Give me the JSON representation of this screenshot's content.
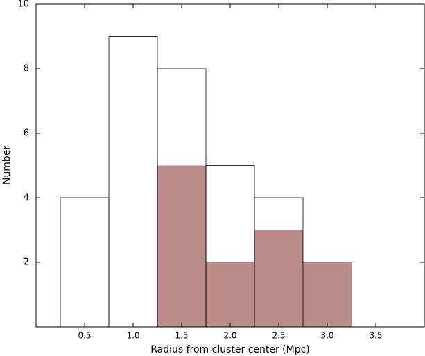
{
  "chart_data": {
    "type": "histogram",
    "xlabel": "Radius from cluster center (Mpc)",
    "ylabel": "Number",
    "bins": [
      0.25,
      0.75,
      1.25,
      1.75,
      2.25,
      2.75,
      3.25,
      3.75
    ],
    "series": [
      {
        "color": "#b98c8a",
        "filled": true,
        "values": [
          0,
          0,
          5,
          2,
          3,
          2,
          0
        ]
      },
      {
        "color": "#000000",
        "filled": false,
        "values": [
          4,
          9,
          8,
          5,
          4,
          0,
          0
        ]
      }
    ],
    "xlim": [
      0,
      4
    ],
    "ylim": [
      0,
      10
    ],
    "xticks": [
      0.5,
      {
        "value": 1,
        "label": "1.0"
      },
      1.5,
      {
        "value": 2,
        "label": "2.0"
      },
      2.5,
      {
        "value": 3,
        "label": "3.0"
      },
      3.5
    ],
    "yticks": [
      2,
      4,
      6,
      8,
      10
    ]
  }
}
